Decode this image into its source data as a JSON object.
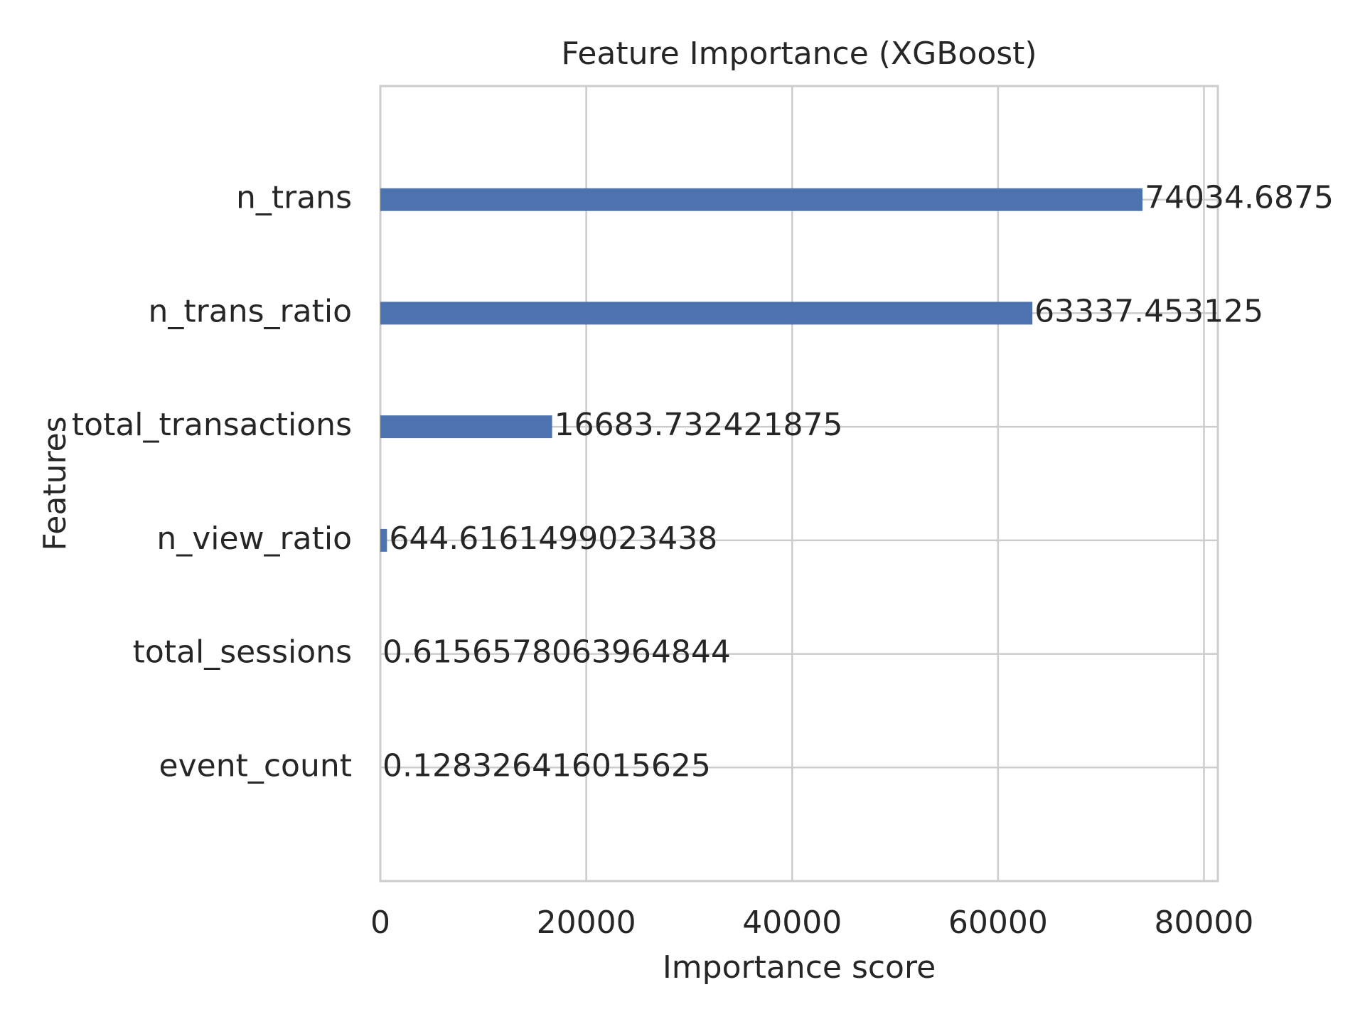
{
  "chart_data": {
    "type": "barh",
    "title": "Feature Importance (XGBoost)",
    "xlabel": "Importance score",
    "ylabel": "Features",
    "categories": [
      "n_trans",
      "n_trans_ratio",
      "total_transactions",
      "n_view_ratio",
      "total_sessions",
      "event_count"
    ],
    "values": [
      74034.6875,
      63337.453125,
      16683.732421875,
      644.6161499023438,
      0.6156578063964844,
      0.128326416015625
    ],
    "color": "#4c72b0",
    "xlim": [
      0,
      81350
    ],
    "xticks": [
      0,
      20000,
      40000,
      60000,
      80000
    ],
    "grid": true
  }
}
